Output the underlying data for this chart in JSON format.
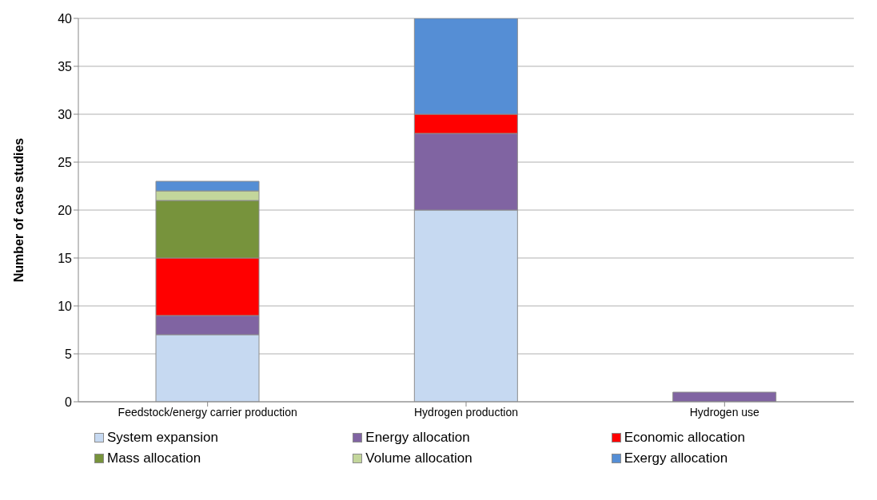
{
  "chart_data": {
    "type": "bar",
    "ylabel": "Number of case studies",
    "stacked": true,
    "categories": [
      "Feedstock/energy carrier production",
      "Hydrogen production",
      "Hydrogen use"
    ],
    "series": [
      {
        "name": "System expansion",
        "color": "#c6d9f1",
        "values": [
          7,
          20,
          0
        ]
      },
      {
        "name": "Energy allocation",
        "color": "#8064a2",
        "values": [
          2,
          8,
          1
        ]
      },
      {
        "name": "Economic allocation",
        "color": "#ff0000",
        "values": [
          6,
          2,
          0
        ]
      },
      {
        "name": "Mass allocation",
        "color": "#77933c",
        "values": [
          6,
          0,
          0
        ]
      },
      {
        "name": "Volume allocation",
        "color": "#c3d69b",
        "values": [
          1,
          0,
          0
        ]
      },
      {
        "name": "Exergy allocation",
        "color": "#558ed5",
        "values": [
          1,
          10,
          0
        ]
      }
    ],
    "ylim": [
      0,
      40
    ],
    "yticks": [
      0,
      5,
      10,
      15,
      20,
      25,
      30,
      35,
      40
    ],
    "grid": "y",
    "legend": "bottom"
  }
}
